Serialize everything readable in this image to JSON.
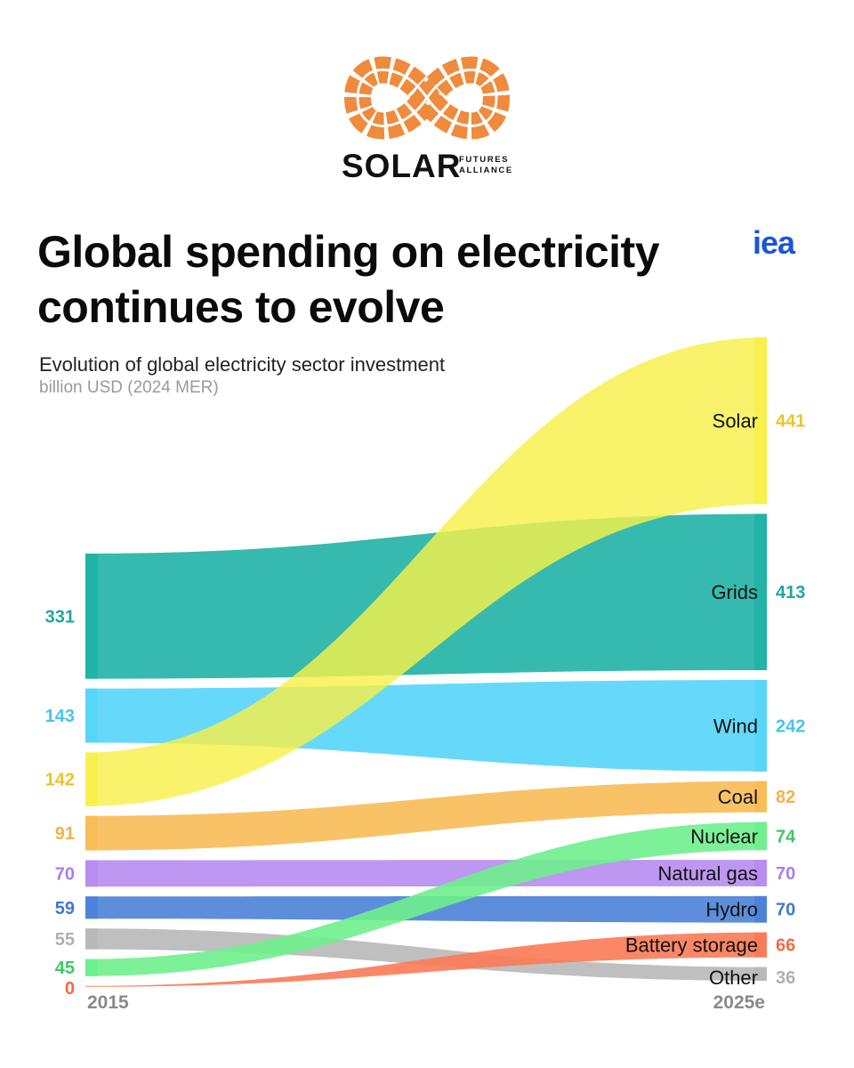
{
  "logo": {
    "word": "SOLAR",
    "sub_line1": "FUTURES",
    "sub_line2": "ALLIANCE",
    "icon": "infinity-solar-panel-icon",
    "color": "#f08a3c"
  },
  "header": {
    "title": "Global spending on electricity continues to evolve",
    "source_logo": "iea",
    "source_color": "#1a56d6"
  },
  "chart_data": {
    "type": "sankey",
    "title": "Evolution of global electricity sector investment",
    "unit": "billion USD (2024 MER)",
    "start_label": "2015",
    "end_label": "2025e",
    "series": [
      {
        "name": "Solar",
        "start": 142,
        "end": 441,
        "color": "#f7f04a",
        "value_color": "#e8c52c"
      },
      {
        "name": "Grids",
        "start": 331,
        "end": 413,
        "color": "#20b2a6",
        "value_color": "#1fa89c"
      },
      {
        "name": "Wind",
        "start": 143,
        "end": 242,
        "color": "#55d5f9",
        "value_color": "#48c4e8"
      },
      {
        "name": "Coal",
        "start": 91,
        "end": 82,
        "color": "#f8bb55",
        "value_color": "#f0b24a"
      },
      {
        "name": "Nuclear",
        "start": 45,
        "end": 74,
        "color": "#6ef08d",
        "value_color": "#3fc765"
      },
      {
        "name": "Natural gas",
        "start": 70,
        "end": 70,
        "color": "#b68cf0",
        "value_color": "#a77fe6"
      },
      {
        "name": "Hydro",
        "start": 59,
        "end": 70,
        "color": "#4a82d8",
        "value_color": "#3f78d0"
      },
      {
        "name": "Battery storage",
        "start": 0,
        "end": 66,
        "color": "#fb7a55",
        "value_color": "#f46a45"
      },
      {
        "name": "Other",
        "start": 55,
        "end": 36,
        "color": "#b8b8b8",
        "value_color": "#b0b0b0"
      }
    ]
  }
}
